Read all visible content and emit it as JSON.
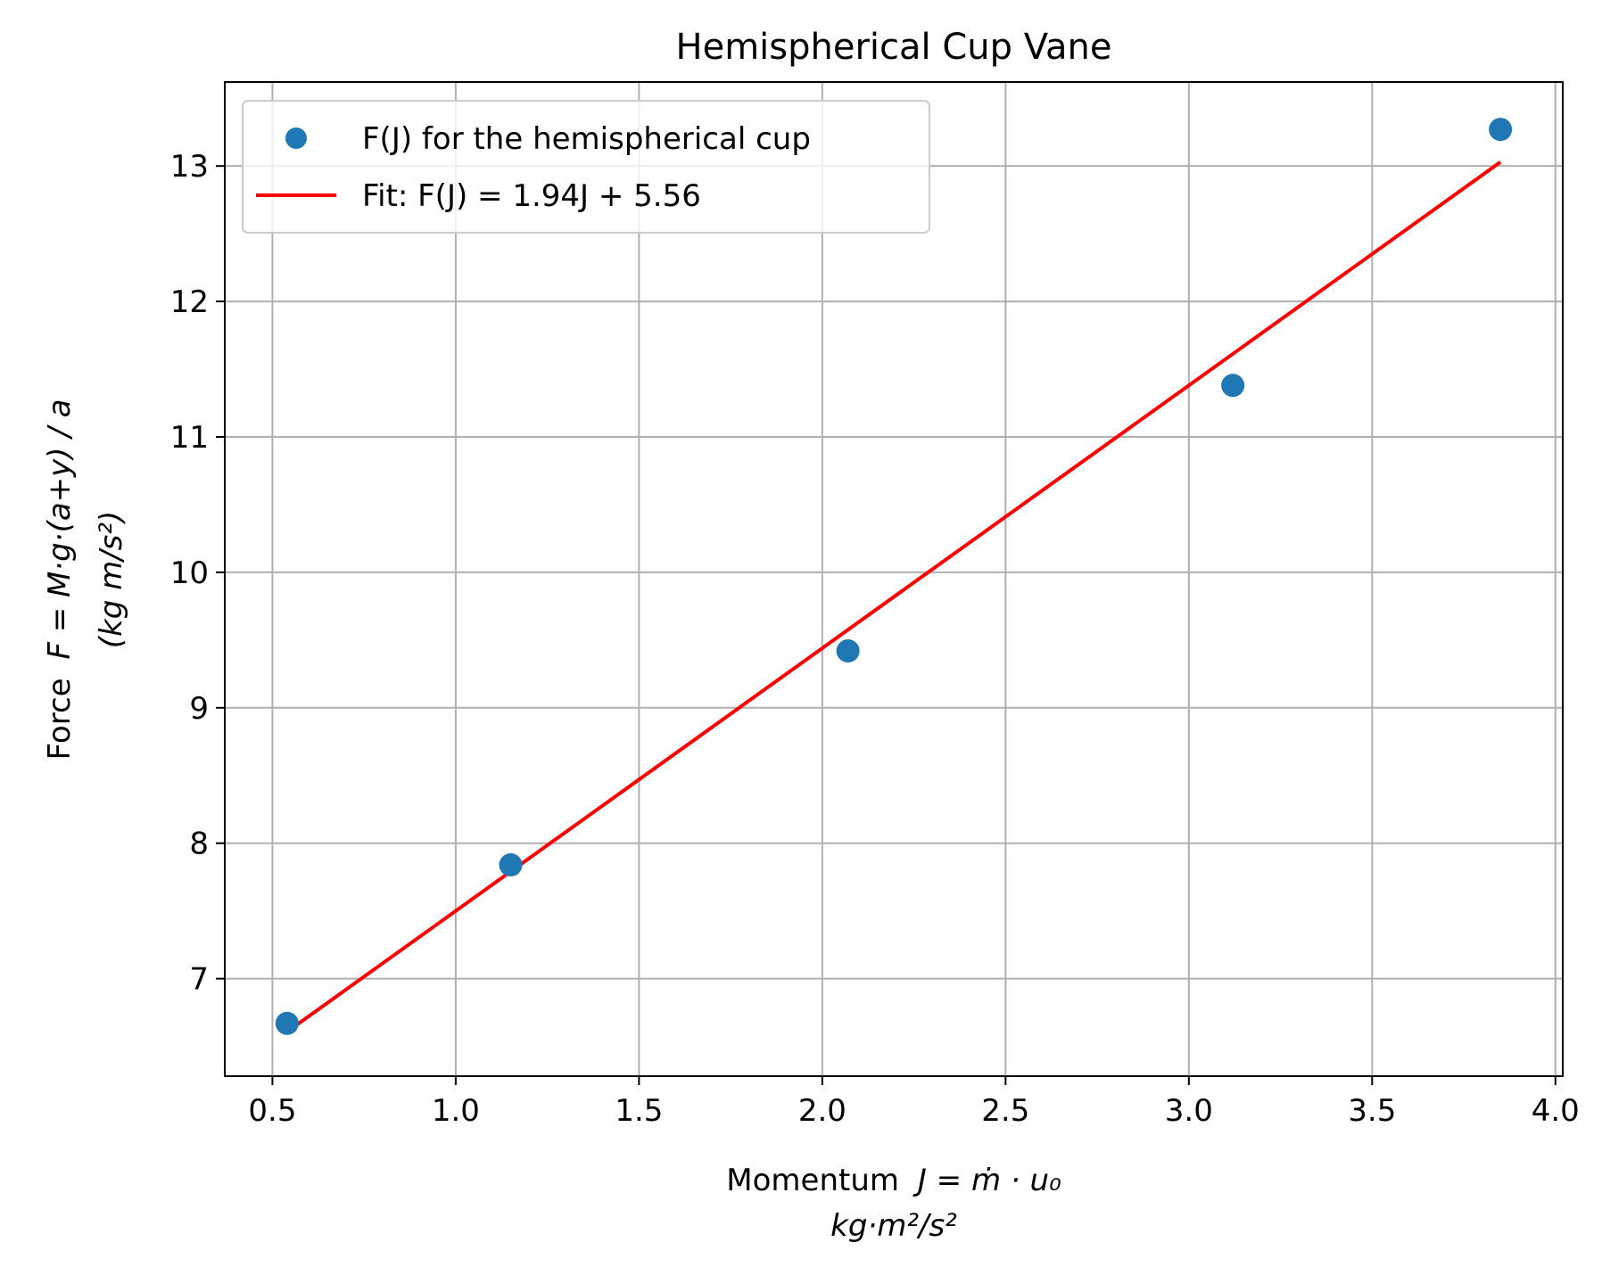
{
  "chart_data": {
    "type": "scatter",
    "title": "Hemispherical Cup Vane",
    "xlabel_line1_prefix": "Momentum",
    "xlabel_line1_math": "J = ṁ · u₀",
    "xlabel_line2": "kg·m²/s²",
    "ylabel_line1_prefix": "Force",
    "ylabel_line1_math": "F = M·g·(a+y) / a",
    "ylabel_line2": "(kg m/s²)",
    "xlim": [
      0.37,
      4.02
    ],
    "ylim": [
      6.28,
      13.62
    ],
    "xticks": [
      0.5,
      1.0,
      1.5,
      2.0,
      2.5,
      3.0,
      3.5,
      4.0
    ],
    "xtick_labels": [
      "0.5",
      "1.0",
      "1.5",
      "2.0",
      "2.5",
      "3.0",
      "3.5",
      "4.0"
    ],
    "yticks": [
      7,
      8,
      9,
      10,
      11,
      12,
      13
    ],
    "ytick_labels": [
      "7",
      "8",
      "9",
      "10",
      "11",
      "12",
      "13"
    ],
    "grid": true,
    "legend_position": "top-left",
    "series": [
      {
        "name": "F(J) for the hemispherical cup",
        "kind": "scatter",
        "color": "#1f77b4",
        "x": [
          0.54,
          1.15,
          2.07,
          3.12,
          3.85
        ],
        "y": [
          6.67,
          7.84,
          9.42,
          11.38,
          13.27
        ]
      },
      {
        "name": "Fit: F(J) = 1.94J + 5.56",
        "kind": "line",
        "color": "#ff0000",
        "slope": 1.94,
        "intercept": 5.56,
        "x_range": [
          0.54,
          3.85
        ]
      }
    ]
  }
}
